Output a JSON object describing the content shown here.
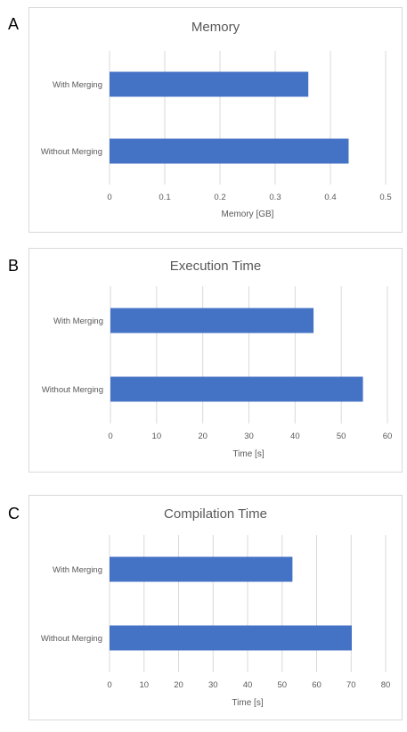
{
  "colors": {
    "bar": "#4472c4",
    "grid": "#d9d9d9",
    "title": "#595959",
    "tick": "#595959"
  },
  "chart_data": [
    {
      "panel": "A",
      "type": "bar",
      "orientation": "horizontal",
      "title": "Memory",
      "categories": [
        "With Merging",
        "Without Merging"
      ],
      "values": [
        0.36,
        0.433
      ],
      "xlabel": "Memory [GB]",
      "ylabel": "",
      "xlim": [
        0,
        0.5
      ],
      "xticks": [
        0,
        0.1,
        0.2,
        0.3,
        0.4,
        0.5
      ],
      "xtick_labels": [
        "0",
        "0.1",
        "0.2",
        "0.3",
        "0.4",
        "0.5"
      ],
      "grid": "vertical",
      "legend": "none"
    },
    {
      "panel": "B",
      "type": "bar",
      "orientation": "horizontal",
      "title": "Execution Time",
      "categories": [
        "With Merging",
        "Without Merging"
      ],
      "values": [
        44,
        54.7
      ],
      "xlabel": "Time [s]",
      "ylabel": "",
      "xlim": [
        0,
        60
      ],
      "xticks": [
        0,
        10,
        20,
        30,
        40,
        50,
        60
      ],
      "xtick_labels": [
        "0",
        "10",
        "20",
        "30",
        "40",
        "50",
        "60"
      ],
      "grid": "vertical",
      "legend": "none"
    },
    {
      "panel": "C",
      "type": "bar",
      "orientation": "horizontal",
      "title": "Compilation Time",
      "categories": [
        "With Merging",
        "Without Merging"
      ],
      "values": [
        53,
        70.2
      ],
      "xlabel": "Time [s]",
      "ylabel": "",
      "xlim": [
        0,
        80
      ],
      "xticks": [
        0,
        10,
        20,
        30,
        40,
        50,
        60,
        70,
        80
      ],
      "xtick_labels": [
        "0",
        "10",
        "20",
        "30",
        "40",
        "50",
        "60",
        "70",
        "80"
      ],
      "grid": "vertical",
      "legend": "none"
    }
  ]
}
